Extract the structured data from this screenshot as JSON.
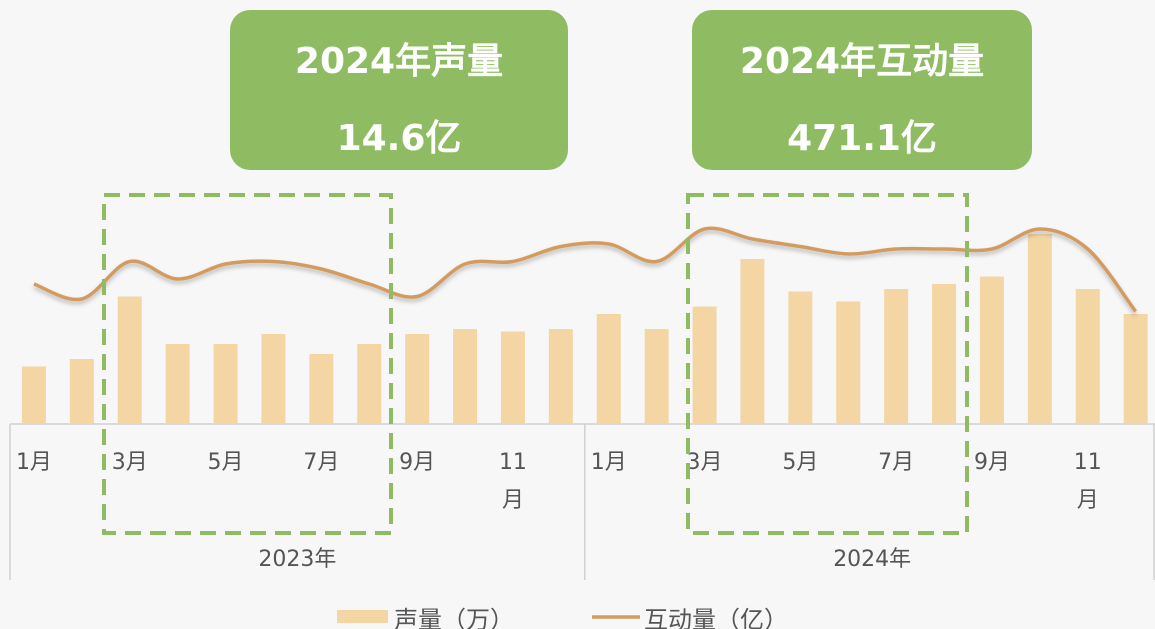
{
  "chart_data": {
    "type": "bar-line",
    "callouts": [
      {
        "title": "2024年声量",
        "value": "14.6亿"
      },
      {
        "title": "2024年互动量",
        "value": "471.1亿"
      }
    ],
    "categories": [
      "1月",
      null,
      "3月",
      null,
      "5月",
      null,
      "7月",
      null,
      "9月",
      null,
      "11月",
      null,
      "1月",
      null,
      "3月",
      null,
      "5月",
      null,
      "7月",
      null,
      "9月",
      null,
      "11月",
      null
    ],
    "groups": [
      "2023年",
      "2024年"
    ],
    "ylim": [
      0,
      100
    ],
    "y2lim": [
      0,
      100
    ],
    "series": [
      {
        "name": "声量（万）",
        "type": "bar",
        "color": "#f3d6a4",
        "values": [
          23,
          26,
          51,
          32,
          32,
          36,
          28,
          32,
          36,
          38,
          37,
          38,
          44,
          38,
          47,
          66,
          53,
          49,
          54,
          56,
          59,
          76,
          54,
          44
        ]
      },
      {
        "name": "互动量（亿）",
        "type": "line",
        "axis": "y2",
        "color": "#d39b60",
        "values": [
          56,
          50,
          65,
          58,
          64,
          65,
          62,
          56,
          51,
          64,
          65,
          71,
          72,
          65,
          78,
          74,
          71,
          68,
          70,
          70,
          70,
          78,
          70,
          45
        ]
      }
    ]
  }
}
